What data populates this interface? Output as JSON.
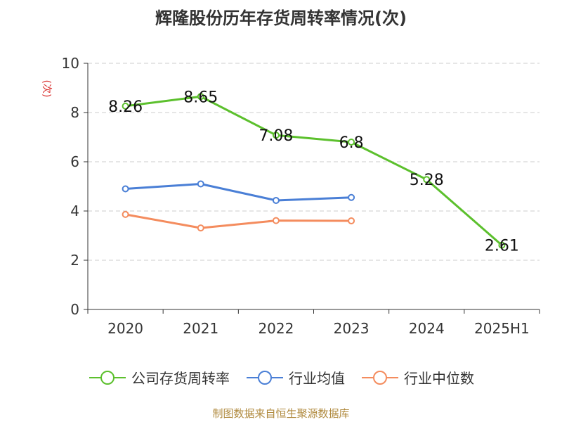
{
  "chart_data": {
    "type": "line",
    "title": "辉隆股份历年存货周转率情况(次)",
    "ylabel": "(次)",
    "ylim": [
      0,
      10
    ],
    "yticks": [
      0,
      2,
      4,
      6,
      8,
      10
    ],
    "categories": [
      "2020",
      "2021",
      "2022",
      "2023",
      "2024",
      "2025H1"
    ],
    "grid": true,
    "legend_position": "bottom",
    "series": [
      {
        "name": "公司存货周转率",
        "color": "#5cc02d",
        "values": [
          8.26,
          8.65,
          7.08,
          6.8,
          5.28,
          2.61
        ],
        "labels": [
          "8.26",
          "8.65",
          "7.08",
          "6.8",
          "5.28",
          "2.61"
        ]
      },
      {
        "name": "行业均值",
        "color": "#4a7fd6",
        "values": [
          4.9,
          5.1,
          4.43,
          4.55,
          null,
          null
        ]
      },
      {
        "name": "行业中位数",
        "color": "#f48c5e",
        "values": [
          3.86,
          3.31,
          3.61,
          3.6,
          null,
          null
        ]
      }
    ]
  },
  "source": "制图数据来自恒生聚源数据库",
  "colors": {
    "axis": "#333333",
    "grid": "#cccccc",
    "ylabel": "#d9302e"
  }
}
